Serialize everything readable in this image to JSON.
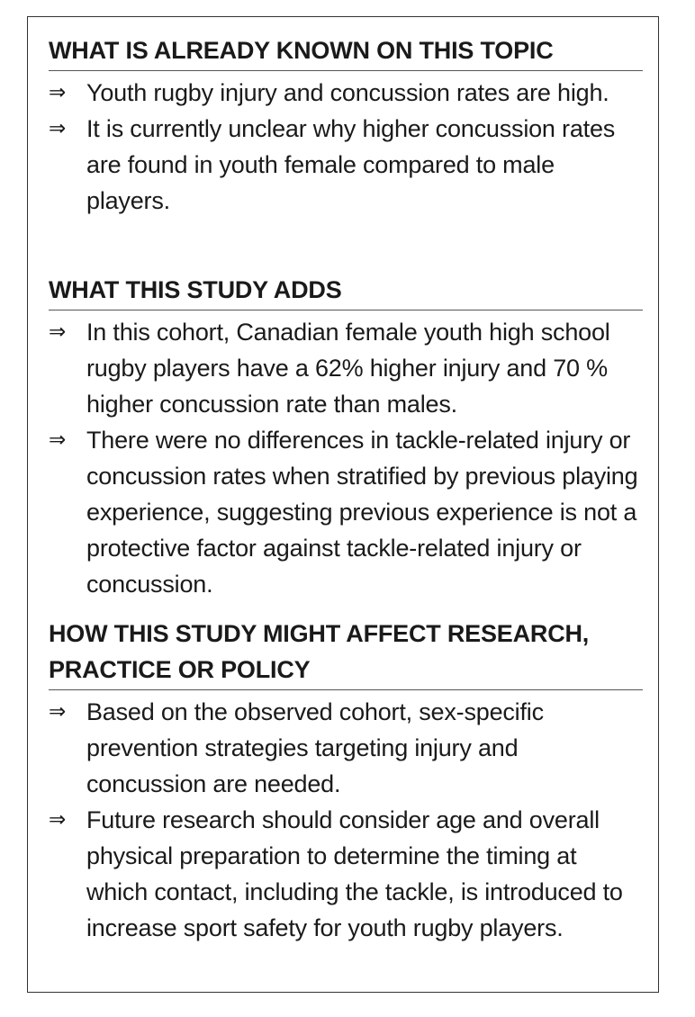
{
  "sections": [
    {
      "heading": "WHAT IS ALREADY KNOWN ON THIS TOPIC",
      "items": [
        "Youth rugby injury and concussion rates are high.",
        "It is currently unclear why higher concussion rates are found in youth female compared to male players."
      ]
    },
    {
      "heading": "WHAT THIS STUDY ADDS",
      "items": [
        "In this cohort, Canadian female youth high school rugby players have a 62% higher injury and 70 % higher concussion rate than males.",
        "There were no differences in tackle-related injury or concussion rates when stratified by previous playing experience, suggesting previous experience is not a protective factor against tackle-related injury or concussion."
      ]
    },
    {
      "heading": "HOW THIS STUDY MIGHT AFFECT RESEARCH, PRACTICE OR POLICY",
      "items": [
        "Based on the observed cohort, sex-specific prevention strategies targeting injury and concussion are needed.",
        "Future research should consider age and overall physical preparation to determine the timing at which contact, including the tackle, is introduced to increase sport safety for youth rugby players."
      ]
    }
  ],
  "bullet_glyph": "⇒"
}
